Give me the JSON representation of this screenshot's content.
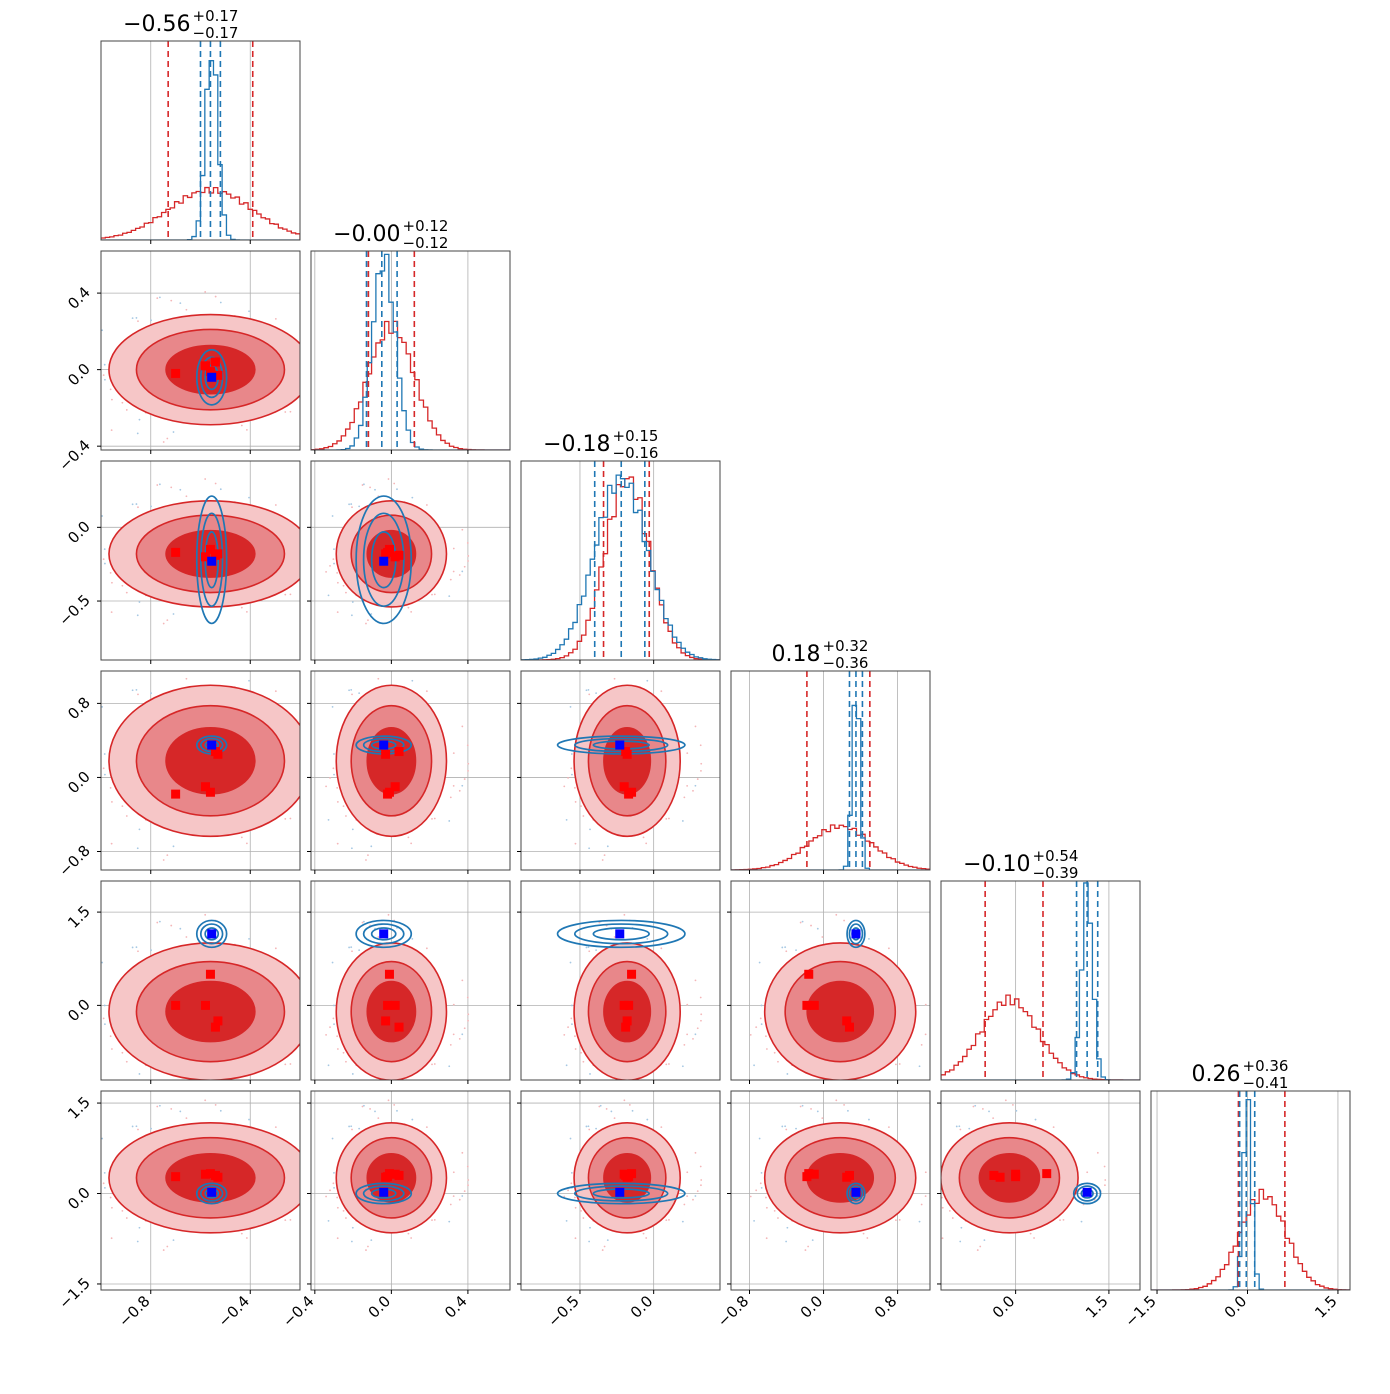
{
  "chart_data": {
    "type": "corner",
    "grid": true,
    "colors": {
      "red": "#d62728",
      "red_mid": "#e8878a",
      "red_light": "#f6c6c7",
      "blue": "#1f77b4",
      "truth_red": "#ff0000",
      "truth_blue": "#0000ff",
      "grid": "#b0b0b0"
    },
    "parameters": [
      {
        "range": [
          -1.0,
          -0.2
        ],
        "ticks": [
          -0.8,
          -0.4
        ],
        "tick_labels": [
          "−0.8",
          "−0.4"
        ],
        "title_main": "−0.56",
        "title_plus": "+0.17",
        "title_minus": "−0.17",
        "red_quantiles": [
          -0.73,
          -0.56,
          -0.39
        ],
        "blue_quantiles": [
          -0.6,
          -0.56,
          -0.52
        ],
        "red_mu": -0.56,
        "red_sigma": 0.17,
        "blue_mu": -0.555,
        "blue_sigma": 0.025,
        "red_truths": [
          -0.7,
          -0.56,
          -0.54,
          -0.53,
          -0.58
        ],
        "blue_truth": -0.555
      },
      {
        "range": [
          -0.42,
          0.62
        ],
        "ticks": [
          -0.4,
          0.0,
          0.4
        ],
        "tick_labels": [
          "−0.4",
          "0.0",
          "0.4"
        ],
        "title_main": "−0.00",
        "title_plus": "+0.12",
        "title_minus": "−0.12",
        "red_quantiles": [
          -0.12,
          0.0,
          0.12
        ],
        "blue_quantiles": [
          -0.13,
          -0.05,
          0.03
        ],
        "red_mu": 0.0,
        "red_sigma": 0.12,
        "blue_mu": -0.04,
        "blue_sigma": 0.06,
        "red_truths": [
          -0.02,
          -0.01,
          0.04,
          -0.03,
          0.02
        ],
        "blue_truth": -0.04
      },
      {
        "range": [
          -0.9,
          0.45
        ],
        "ticks": [
          -0.5,
          0.0
        ],
        "tick_labels": [
          "−0.5",
          "0.0"
        ],
        "title_main": "−0.18",
        "title_plus": "+0.15",
        "title_minus": "−0.16",
        "red_quantiles": [
          -0.34,
          -0.18,
          -0.03
        ],
        "blue_quantiles": [
          -0.4,
          -0.22,
          -0.06
        ],
        "red_mu": -0.18,
        "red_sigma": 0.15,
        "blue_mu": -0.22,
        "blue_sigma": 0.18,
        "red_truths": [
          -0.17,
          -0.15,
          -0.19,
          -0.18,
          -0.2
        ],
        "blue_truth": -0.23
      },
      {
        "range": [
          -1.0,
          1.15
        ],
        "ticks": [
          -0.8,
          0.0,
          0.8
        ],
        "tick_labels": [
          "−0.8",
          "0.0",
          "0.8"
        ],
        "title_main": "0.18",
        "title_plus": "+0.32",
        "title_minus": "−0.36",
        "red_quantiles": [
          -0.18,
          0.18,
          0.5
        ],
        "blue_quantiles": [
          0.28,
          0.35,
          0.42
        ],
        "red_mu": 0.18,
        "red_sigma": 0.34,
        "blue_mu": 0.35,
        "blue_sigma": 0.04,
        "red_truths": [
          -0.18,
          -0.16,
          0.28,
          0.25,
          -0.1
        ],
        "blue_truth": 0.35
      },
      {
        "range": [
          -1.2,
          2.0
        ],
        "ticks": [
          0.0,
          1.5
        ],
        "tick_labels": [
          "0.0",
          "1.5"
        ],
        "title_main": "−0.10",
        "title_plus": "+0.54",
        "title_minus": "−0.39",
        "red_quantiles": [
          -0.49,
          -0.1,
          0.44
        ],
        "blue_quantiles": [
          0.98,
          1.15,
          1.32
        ],
        "red_mu": -0.1,
        "red_sigma": 0.46,
        "blue_mu": 1.15,
        "blue_sigma": 0.09,
        "red_truths": [
          0.0,
          0.5,
          -0.35,
          -0.25,
          0.0
        ],
        "blue_truth": 1.15
      },
      {
        "range": [
          -1.6,
          1.7
        ],
        "ticks": [
          -1.5,
          0.0,
          1.5
        ],
        "tick_labels": [
          "−1.5",
          "0.0",
          "1.5"
        ],
        "title_main": "0.26",
        "title_plus": "+0.36",
        "title_minus": "−0.41",
        "red_quantiles": [
          -0.15,
          0.26,
          0.62
        ],
        "blue_quantiles": [
          -0.13,
          -0.02,
          0.12
        ],
        "red_mu": 0.26,
        "red_sigma": 0.38,
        "blue_mu": 0.0,
        "blue_sigma": 0.07,
        "red_truths": [
          0.28,
          0.33,
          0.3,
          0.27,
          0.32
        ],
        "blue_truth": 0.02
      }
    ]
  }
}
